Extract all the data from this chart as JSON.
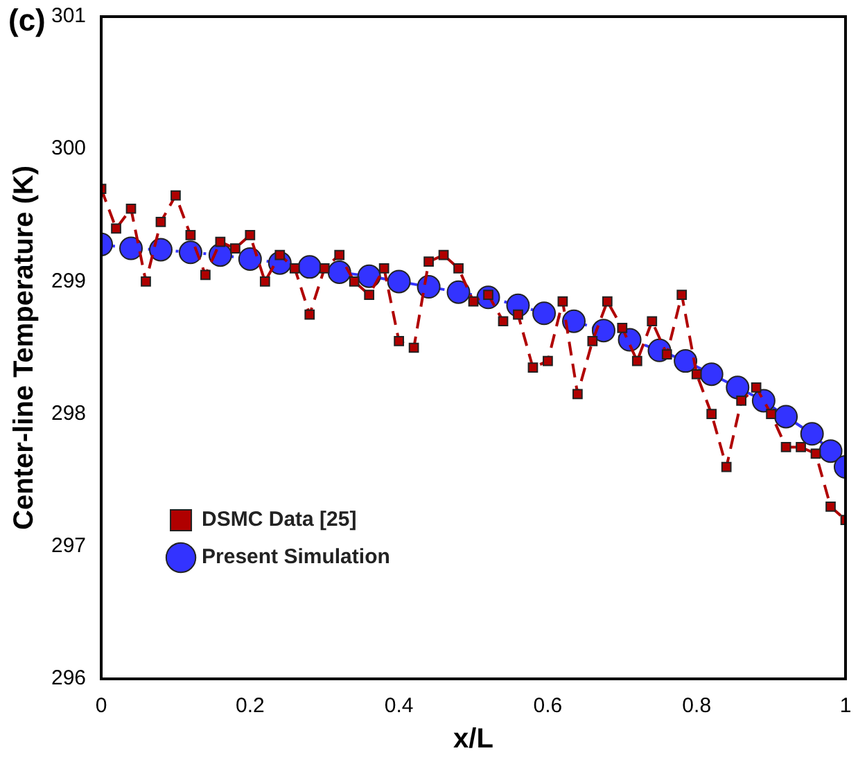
{
  "chart_data": {
    "type": "line",
    "xlabel": "x/L",
    "ylabel": "Center-line Temperature (K)",
    "annotations": [
      "(c)"
    ],
    "xlim": [
      0,
      1
    ],
    "xticks": [
      0,
      0.2,
      0.4,
      0.6,
      0.8,
      1
    ],
    "ylim": [
      296,
      301
    ],
    "yticks": [
      296,
      297,
      298,
      299,
      300,
      301
    ],
    "grid": false,
    "legend": "bottom left",
    "series": [
      {
        "name": "DSMC Data [25]",
        "color": "#b00000",
        "marker": "square",
        "line_style": "dashed",
        "x": [
          0,
          0.02,
          0.04,
          0.06,
          0.08,
          0.1,
          0.12,
          0.14,
          0.16,
          0.18,
          0.2,
          0.22,
          0.24,
          0.26,
          0.28,
          0.3,
          0.32,
          0.34,
          0.36,
          0.38,
          0.4,
          0.42,
          0.44,
          0.46,
          0.48,
          0.5,
          0.52,
          0.54,
          0.56,
          0.58,
          0.6,
          0.62,
          0.64,
          0.66,
          0.68,
          0.7,
          0.72,
          0.74,
          0.76,
          0.78,
          0.8,
          0.82,
          0.84,
          0.86,
          0.88,
          0.9,
          0.92,
          0.94,
          0.96,
          0.98,
          1
        ],
        "values": [
          299.7,
          299.4,
          299.55,
          299.0,
          299.45,
          299.65,
          299.35,
          299.05,
          299.3,
          299.25,
          299.35,
          299.0,
          299.2,
          299.1,
          298.75,
          299.1,
          299.2,
          299.0,
          298.9,
          299.1,
          298.55,
          298.5,
          299.15,
          299.2,
          299.1,
          298.85,
          298.9,
          298.7,
          298.75,
          298.35,
          298.4,
          298.85,
          298.15,
          298.55,
          298.85,
          298.65,
          298.4,
          298.7,
          298.45,
          298.9,
          298.3,
          298.0,
          297.6,
          298.1,
          298.2,
          298.0,
          297.75,
          297.75,
          297.7,
          297.3,
          297.2
        ]
      },
      {
        "name": "Present Simulation",
        "color": "#3333ff",
        "marker": "circle",
        "line_style": "dashdot",
        "x": [
          0,
          0.04,
          0.08,
          0.12,
          0.16,
          0.2,
          0.24,
          0.28,
          0.32,
          0.36,
          0.4,
          0.44,
          0.48,
          0.52,
          0.56,
          0.595,
          0.635,
          0.675,
          0.71,
          0.75,
          0.785,
          0.82,
          0.855,
          0.89,
          0.92,
          0.955,
          0.98,
          1
        ],
        "values": [
          299.28,
          299.25,
          299.24,
          299.22,
          299.2,
          299.17,
          299.14,
          299.11,
          299.07,
          299.04,
          299.0,
          298.96,
          298.92,
          298.88,
          298.82,
          298.76,
          298.7,
          298.63,
          298.56,
          298.48,
          298.4,
          298.3,
          298.2,
          298.1,
          297.98,
          297.85,
          297.72,
          297.6
        ]
      }
    ]
  }
}
